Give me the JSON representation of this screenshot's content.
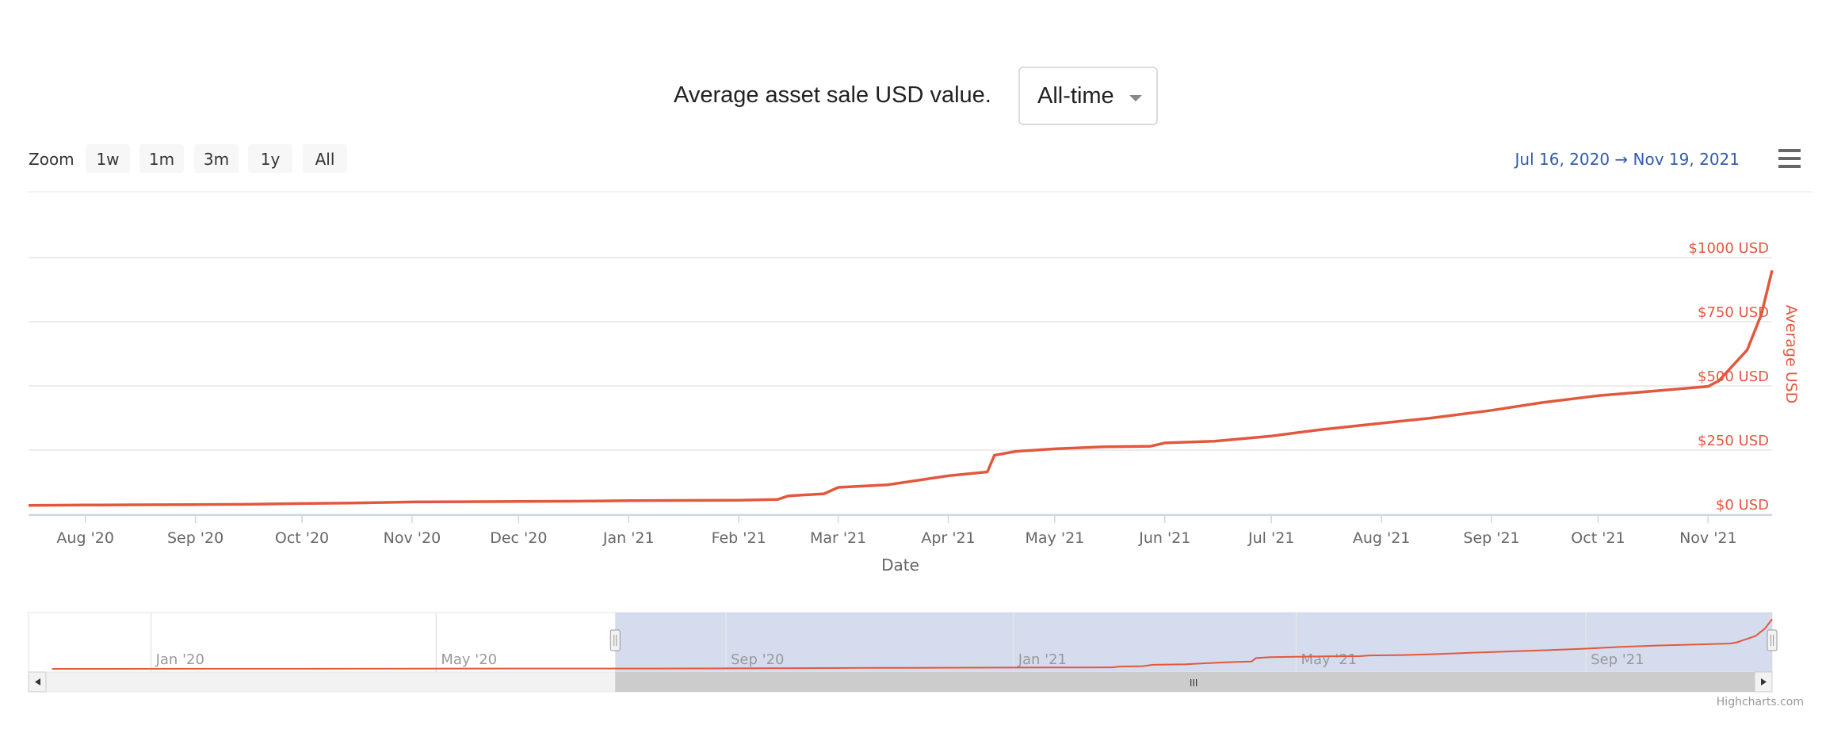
{
  "header": {
    "title": "Average asset sale USD value.",
    "range_select": "All-time"
  },
  "zoom": {
    "label": "Zoom",
    "buttons": [
      "1w",
      "1m",
      "3m",
      "1y",
      "All"
    ]
  },
  "range": {
    "from": "Jul 16, 2020",
    "arrow": "→",
    "to": "Nov 19, 2021"
  },
  "menu_icon": "hamburger-menu-icon",
  "credit": "Highcharts.com",
  "colors": {
    "line": "#e2583e",
    "axis_text": "#666666",
    "yaxis_text": "#e2583e",
    "range_text": "#335cad",
    "grid": "#e6e6e6",
    "navigator_mask": "#ccd6eb"
  },
  "chart_data": {
    "type": "line",
    "title": "Average asset sale USD value.",
    "xlabel": "Date",
    "ylabel": "Average USD",
    "x_ticks": [
      "Aug '20",
      "Sep '20",
      "Oct '20",
      "Nov '20",
      "Dec '20",
      "Jan '21",
      "Feb '21",
      "Mar '21",
      "Apr '21",
      "May '21",
      "Jun '21",
      "Jul '21",
      "Aug '21",
      "Sep '21",
      "Oct '21",
      "Nov '21"
    ],
    "y_ticks": [
      "$0 USD",
      "$250 USD",
      "$500 USD",
      "$750 USD",
      "$1000 USD"
    ],
    "y_tick_values": [
      0,
      250,
      500,
      750,
      1000
    ],
    "ylim": [
      0,
      1000
    ],
    "xlim": [
      "2020-07-16",
      "2021-11-19"
    ],
    "grid": true,
    "series": [
      {
        "x": [
          "2020-07-16",
          "2020-08-01",
          "2020-08-15",
          "2020-09-01",
          "2020-09-15",
          "2020-10-01",
          "2020-10-15",
          "2020-11-01",
          "2020-11-15",
          "2020-12-01",
          "2020-12-15",
          "2021-01-01",
          "2021-01-15",
          "2021-02-01",
          "2021-02-12",
          "2021-02-15",
          "2021-02-25",
          "2021-03-01",
          "2021-03-15",
          "2021-04-01",
          "2021-04-12",
          "2021-04-14",
          "2021-04-20",
          "2021-05-01",
          "2021-05-15",
          "2021-05-28",
          "2021-06-01",
          "2021-06-15",
          "2021-07-01",
          "2021-07-15",
          "2021-08-01",
          "2021-08-15",
          "2021-09-01",
          "2021-09-15",
          "2021-10-01",
          "2021-10-15",
          "2021-11-01",
          "2021-11-04",
          "2021-11-08",
          "2021-11-12",
          "2021-11-16",
          "2021-11-19"
        ],
        "y": [
          35,
          36,
          37,
          38,
          39,
          42,
          44,
          48,
          49,
          50,
          51,
          53,
          54,
          55,
          58,
          72,
          80,
          105,
          115,
          150,
          165,
          230,
          245,
          255,
          263,
          265,
          278,
          285,
          305,
          330,
          355,
          375,
          405,
          435,
          462,
          478,
          498,
          520,
          580,
          640,
          780,
          950
        ]
      }
    ],
    "navigator": {
      "ticks": [
        "Jan '20",
        "May '20",
        "Sep '20",
        "Jan '21",
        "May '21",
        "Sep '21"
      ],
      "xlim": [
        "2019-11-10",
        "2021-11-19"
      ],
      "selection": [
        "2020-07-16",
        "2021-11-19"
      ],
      "scrollbar_grip": "III"
    }
  }
}
